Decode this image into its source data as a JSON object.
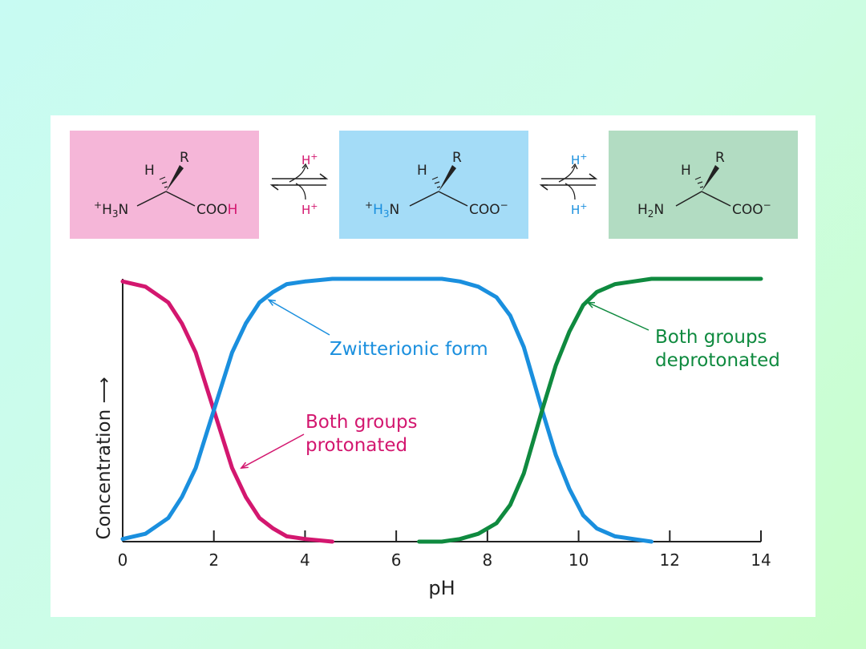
{
  "colors": {
    "protonated": "#d3176f",
    "zwitterion": "#1a8fde",
    "deprotonated": "#0f8a3f",
    "axis": "#222222",
    "box_pink": "#f5b6d8",
    "box_blue": "#a4dcf7",
    "box_green": "#b2dcc2"
  },
  "molecules": [
    {
      "h": "H",
      "r": "R",
      "amine_sup": "+",
      "amine_h": "H",
      "amine_sub": "3",
      "amine_n": "N",
      "carboxyl_main": "COO",
      "carboxyl_end": "H"
    },
    {
      "h": "H",
      "r": "R",
      "amine_sup": "+",
      "amine_h": "H",
      "amine_sub": "3",
      "amine_n": "N",
      "carboxyl_main": "COO",
      "carboxyl_end": "−"
    },
    {
      "h": "H",
      "r": "R",
      "amine_h": "H",
      "amine_sub": "2",
      "amine_n": "N",
      "carboxyl_main": "COO",
      "carboxyl_end": "−"
    }
  ],
  "equilibria": [
    {
      "top": "H",
      "top_sup": "+",
      "bottom": "H",
      "bottom_sup": "+"
    },
    {
      "top": "H",
      "top_sup": "+",
      "bottom": "H",
      "bottom_sup": "+"
    }
  ],
  "chart_data": {
    "type": "line",
    "xlabel": "pH",
    "ylabel": "Concentration ⟶",
    "xlim": [
      0,
      14
    ],
    "ylim": [
      0,
      1
    ],
    "xticks": [
      0,
      2,
      4,
      6,
      8,
      10,
      12,
      14
    ],
    "grid": false,
    "series": [
      {
        "key": "protonated",
        "x": [
          0,
          0.5,
          1.0,
          1.3,
          1.6,
          1.8,
          2.0,
          2.2,
          2.4,
          2.7,
          3.0,
          3.3,
          3.6,
          4.0,
          4.6
        ],
        "values": [
          0.99,
          0.97,
          0.91,
          0.83,
          0.72,
          0.61,
          0.5,
          0.39,
          0.28,
          0.17,
          0.09,
          0.05,
          0.02,
          0.01,
          0.0
        ]
      },
      {
        "key": "zwitterion",
        "x": [
          0,
          0.5,
          1.0,
          1.3,
          1.6,
          1.8,
          2.0,
          2.2,
          2.4,
          2.7,
          3.0,
          3.3,
          3.6,
          4.0,
          4.6,
          5.0,
          6.0,
          7.0,
          7.4,
          7.8,
          8.2,
          8.5,
          8.8,
          9.0,
          9.2,
          9.5,
          9.8,
          10.1,
          10.4,
          10.8,
          11.2,
          11.6
        ],
        "values": [
          0.01,
          0.03,
          0.09,
          0.17,
          0.28,
          0.39,
          0.5,
          0.61,
          0.72,
          0.83,
          0.91,
          0.95,
          0.98,
          0.99,
          1.0,
          1.0,
          1.0,
          1.0,
          0.99,
          0.97,
          0.93,
          0.86,
          0.74,
          0.62,
          0.5,
          0.33,
          0.2,
          0.1,
          0.05,
          0.02,
          0.01,
          0.0
        ]
      },
      {
        "key": "deprotonated",
        "x": [
          6.5,
          7.0,
          7.4,
          7.8,
          8.2,
          8.5,
          8.8,
          9.0,
          9.2,
          9.5,
          9.8,
          10.1,
          10.4,
          10.8,
          11.2,
          11.6,
          12.5,
          14.0
        ],
        "values": [
          0.0,
          0.0,
          0.01,
          0.03,
          0.07,
          0.14,
          0.26,
          0.38,
          0.5,
          0.67,
          0.8,
          0.9,
          0.95,
          0.98,
          0.99,
          1.0,
          1.0,
          1.0
        ]
      }
    ],
    "annotations": [
      {
        "key": "zwitterion",
        "lines": [
          "Zwitterionic form"
        ],
        "x": 3.2,
        "y": 0.92
      },
      {
        "key": "protonated",
        "lines": [
          "Both groups",
          "protonated"
        ],
        "x": 2.6,
        "y": 0.28
      },
      {
        "key": "deprotonated",
        "lines": [
          "Both groups",
          "deprotonated"
        ],
        "x": 10.2,
        "y": 0.91
      }
    ]
  }
}
